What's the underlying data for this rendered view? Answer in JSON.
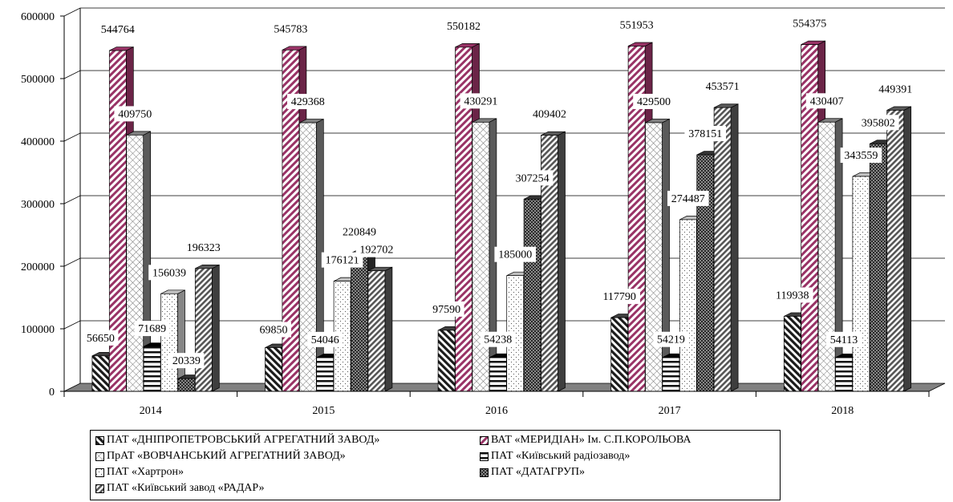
{
  "chart_data": {
    "type": "bar",
    "categories": [
      "2014",
      "2015",
      "2016",
      "2017",
      "2018"
    ],
    "ylim": [
      0,
      600000
    ],
    "yticks": [
      "0",
      "100000",
      "200000",
      "300000",
      "400000",
      "500000",
      "600000"
    ],
    "grid": true,
    "legend_position": "bottom",
    "series": [
      {
        "name": "ПАТ «ДНІПРОПЕТРОВСЬКИЙ АГРЕГАТНИЙ ЗАВОД»",
        "values": [
          56650,
          69850,
          97590,
          117790,
          119938
        ],
        "labels": [
          "56650",
          "69850",
          "97590",
          "117790",
          "119938"
        ],
        "pattern": "diag-dark",
        "color": "#404040"
      },
      {
        "name": "ВАТ «МЕРИДІАН» Ім. С.П.КОРОЛЬОВА",
        "values": [
          544764,
          545783,
          550182,
          551953,
          554375
        ],
        "labels": [
          "544764",
          "545783",
          "550182",
          "551953",
          "554375"
        ],
        "pattern": "diag-pink",
        "color": "#993366"
      },
      {
        "name": "ПрАТ «ВОВЧАНСЬКИЙ АГРЕГАТНИЙ ЗАВОД»",
        "values": [
          409750,
          429368,
          430291,
          429500,
          430407
        ],
        "labels": [
          "409750",
          "429368",
          "430291",
          "429500",
          "430407"
        ],
        "pattern": "cross-light",
        "color": "#808080"
      },
      {
        "name": "ПАТ «Київський радіозавод»",
        "values": [
          71689,
          54046,
          54238,
          54219,
          54113
        ],
        "labels": [
          "71689",
          "54046",
          "54238",
          "54219",
          "54113"
        ],
        "pattern": "horiz",
        "color": "#000000"
      },
      {
        "name": "ПАТ «Хартрон»",
        "values": [
          156039,
          176121,
          185000,
          274487,
          343559
        ],
        "labels": [
          "156039",
          "176121",
          "185000",
          "274487",
          "343559"
        ],
        "pattern": "dots",
        "color": "#bfbfbf"
      },
      {
        "name": "ПАТ «ДАТАГРУП»",
        "values": [
          20339,
          220849,
          307254,
          378151,
          395802
        ],
        "labels": [
          "20339",
          "220849",
          "307254",
          "378151",
          "395802"
        ],
        "pattern": "checker",
        "color": "#333333"
      },
      {
        "name": "ПАТ «Київський завод «РАДАР»",
        "values": [
          196323,
          192702,
          409402,
          453571,
          449391
        ],
        "labels": [
          "196323",
          "192702",
          "409402",
          "453571",
          "449391"
        ],
        "pattern": "diag-gray",
        "color": "#595959"
      }
    ]
  }
}
